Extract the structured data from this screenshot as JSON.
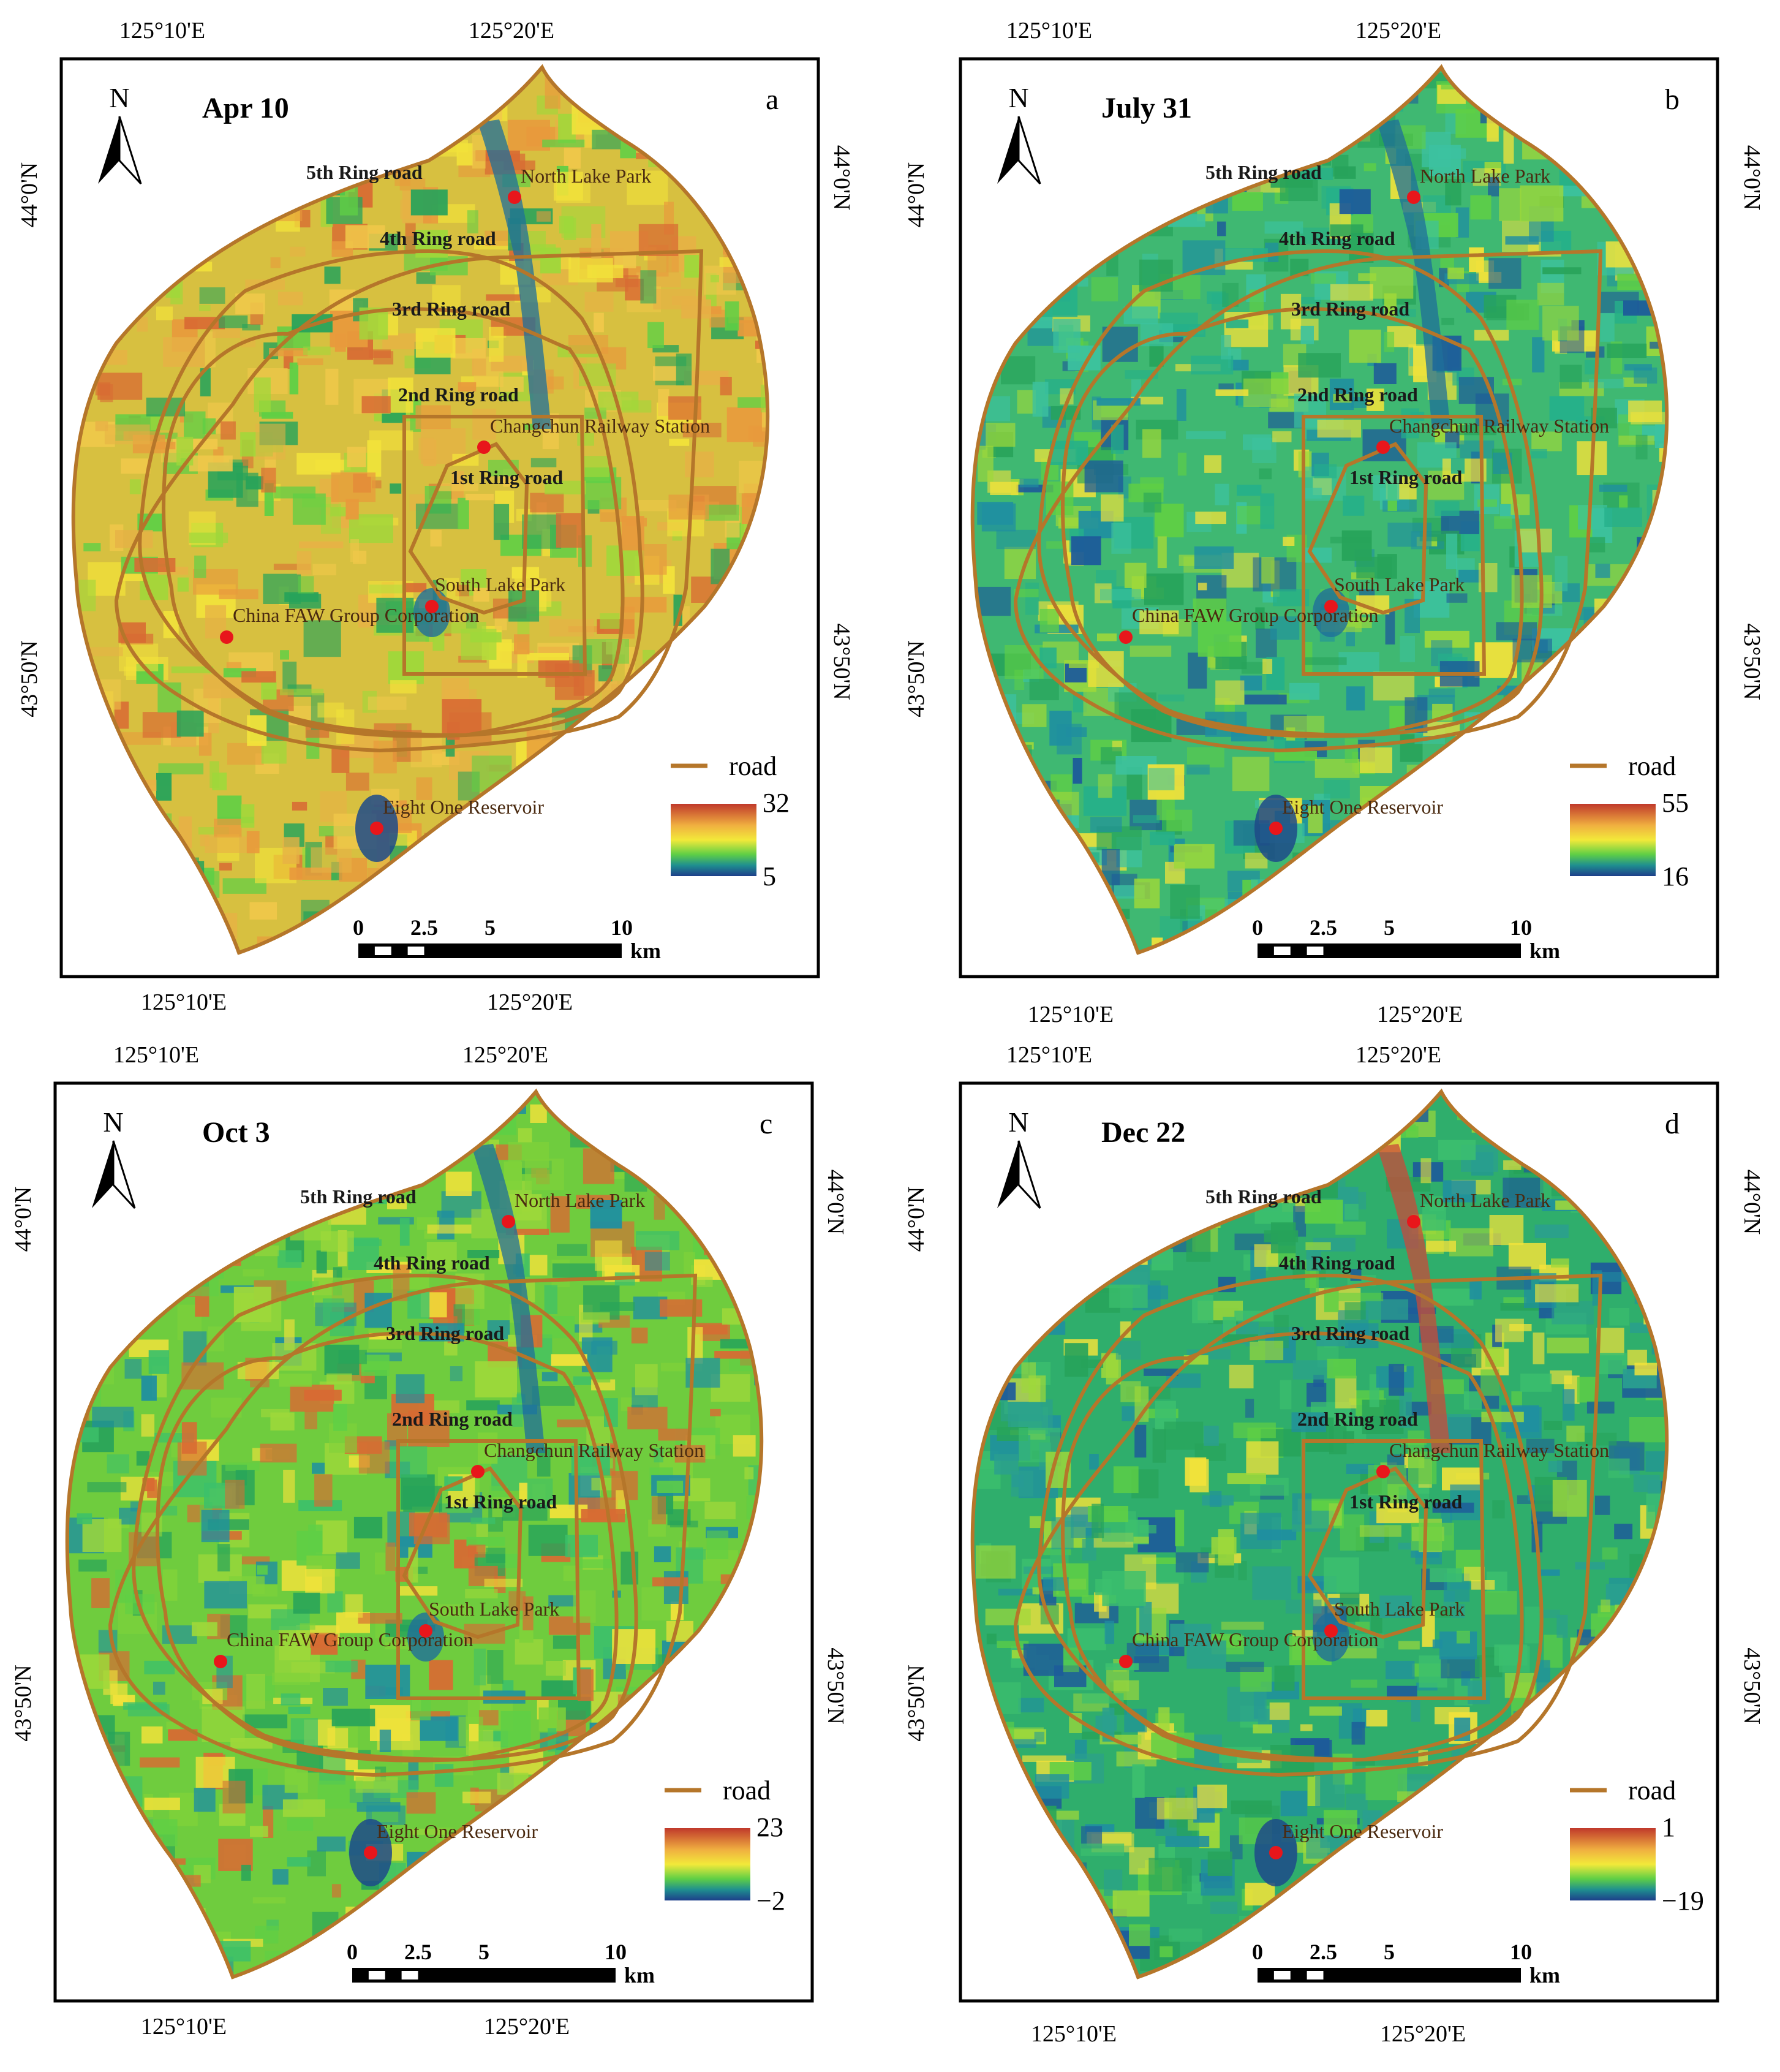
{
  "panels": [
    {
      "id": "a",
      "date": "Apr 10",
      "letter": "a",
      "legend": {
        "road_label": "road",
        "max": "32",
        "min": "5"
      },
      "palette": "spring"
    },
    {
      "id": "b",
      "date": "July 31",
      "letter": "b",
      "legend": {
        "road_label": "road",
        "max": "55",
        "min": "16"
      },
      "palette": "summer"
    },
    {
      "id": "c",
      "date": "Oct 3",
      "letter": "c",
      "legend": {
        "road_label": "road",
        "max": "23",
        "min": "−2"
      },
      "palette": "autumn"
    },
    {
      "id": "d",
      "date": "Dec 22",
      "letter": "d",
      "legend": {
        "road_label": "road",
        "max": "1",
        "min": "−19"
      },
      "palette": "winter"
    }
  ],
  "north_label": "N",
  "coordinates": {
    "lon_left": "125°10'E",
    "lon_right": "125°20'E",
    "lat_top": "44°0'N",
    "lat_bottom": "43°50'N"
  },
  "ring_roads": [
    "5th Ring road",
    "4th Ring road",
    "3rd Ring road",
    "2nd Ring road",
    "1st Ring road"
  ],
  "places": [
    "North Lake Park",
    "Changchun Railway Station",
    "South Lake Park",
    "China FAW Group Corporation",
    "Eight One Reservoir"
  ],
  "scale_bar": {
    "ticks": [
      "0",
      "2.5",
      "5",
      "10"
    ],
    "unit": "km"
  },
  "colors": {
    "boundary": "#b5762a",
    "point": "#e8161b",
    "ramp": [
      "#c0392b",
      "#e9a03c",
      "#f2e93a",
      "#7fd23a",
      "#27a35a",
      "#1f7a9a",
      "#1d3f8a"
    ]
  }
}
